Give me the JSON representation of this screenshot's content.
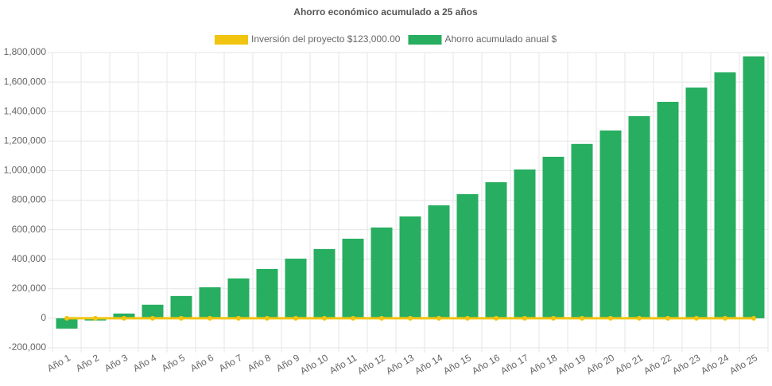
{
  "chart_data": {
    "type": "bar",
    "title": "Ahorro económico acumulado a 25 años",
    "categories": [
      "Año 1",
      "Año 2",
      "Año 3",
      "Año 4",
      "Año 5",
      "Año 6",
      "Año 7",
      "Año 8",
      "Año 9",
      "Año 10",
      "Año 11",
      "Año 12",
      "Año 13",
      "Año 14",
      "Año 15",
      "Año 16",
      "Año 17",
      "Año 18",
      "Año 19",
      "Año 20",
      "Año 21",
      "Año 22",
      "Año 23",
      "Año 24",
      "Año 25"
    ],
    "series": [
      {
        "name": "Inversión del proyecto $123,000.00",
        "type": "line",
        "color": "#f1c40f",
        "values": [
          0,
          0,
          0,
          0,
          0,
          0,
          0,
          0,
          0,
          0,
          0,
          0,
          0,
          0,
          0,
          0,
          0,
          0,
          0,
          0,
          0,
          0,
          0,
          0,
          0
        ]
      },
      {
        "name": "Ahorro acumulado anual $",
        "type": "bar",
        "color": "#27ae60",
        "values": [
          -70000,
          -15000,
          32000,
          92000,
          151000,
          210000,
          270000,
          334000,
          404000,
          469000,
          539000,
          615000,
          690000,
          765000,
          841000,
          922000,
          1008000,
          1094000,
          1181000,
          1272000,
          1369000,
          1466000,
          1563000,
          1666000,
          1774000
        ]
      }
    ],
    "ylim": [
      -200000,
      1800000
    ],
    "yticks": [
      {
        "value": -200000,
        "label": "-200,000"
      },
      0,
      {
        "value": 200000,
        "label": "200,000"
      },
      {
        "value": 400000,
        "label": "400,000"
      },
      {
        "value": 600000,
        "label": "600,000"
      },
      {
        "value": 800000,
        "label": "800,000"
      },
      {
        "value": 1000000,
        "label": "1,000,000"
      },
      {
        "value": 1200000,
        "label": "1,200,000"
      },
      {
        "value": 1400000,
        "label": "1,400,000"
      },
      {
        "value": 1600000,
        "label": "1,600,000"
      },
      {
        "value": 1800000,
        "label": "1,800,000"
      }
    ],
    "grid": true
  }
}
